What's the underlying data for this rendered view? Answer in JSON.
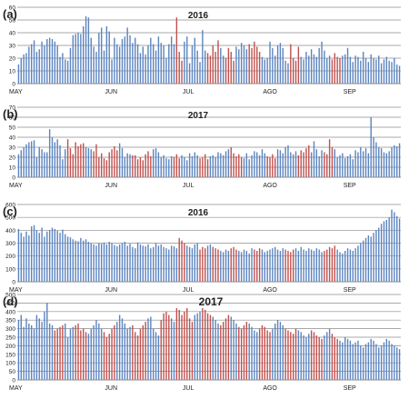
{
  "colors": {
    "blue_bar": "#5B84C0",
    "red_bar": "#C0504D",
    "grid": "#8C8C8C",
    "text": "#222222"
  },
  "chart_data": [
    {
      "type": "bar",
      "panel_label": "(a)",
      "title": "2016",
      "ylim": [
        0,
        60
      ],
      "yticks": [
        0,
        10,
        20,
        30,
        40,
        50,
        60
      ],
      "month_labels": [
        "MAY",
        "JUN",
        "JUL",
        "AGO",
        "SEP"
      ],
      "month_start_index": [
        0,
        31,
        61,
        92,
        123
      ],
      "grid": true,
      "values": [
        15,
        20,
        23,
        24,
        29,
        31,
        34,
        25,
        27,
        33,
        30,
        35,
        36,
        35,
        33,
        30,
        21,
        24,
        19,
        18,
        28,
        38,
        39,
        40,
        39,
        45,
        53,
        52,
        36,
        29,
        25,
        40,
        44,
        26,
        45,
        41,
        19,
        36,
        31,
        29,
        35,
        37,
        44,
        38,
        32,
        36,
        31,
        24,
        29,
        23,
        30,
        36,
        31,
        26,
        37,
        32,
        30,
        20,
        31,
        37,
        31,
        52,
        25,
        18,
        33,
        37,
        16,
        30,
        36,
        26,
        17,
        42,
        26,
        24,
        22,
        30,
        25,
        34,
        28,
        22,
        20,
        28,
        25,
        18,
        29,
        27,
        32,
        30,
        27,
        31,
        28,
        33,
        29,
        25,
        21,
        19,
        20,
        33,
        28,
        22,
        30,
        32,
        28,
        18,
        16,
        31,
        20,
        18,
        29,
        21,
        19,
        25,
        22,
        27,
        23,
        21,
        28,
        33,
        26,
        20,
        22,
        19,
        24,
        21,
        20,
        22,
        23,
        28,
        21,
        17,
        22,
        21,
        18,
        25,
        20,
        17,
        23,
        20,
        19,
        22,
        16,
        19,
        21,
        18,
        17,
        20,
        15,
        14
      ],
      "red_indices": [
        61,
        62,
        63,
        73,
        74,
        75,
        76,
        77,
        80,
        81,
        82,
        83,
        89,
        90,
        91,
        92,
        93,
        105,
        106,
        107,
        108,
        121,
        122,
        123,
        124
      ]
    },
    {
      "type": "bar",
      "panel_label": "(b)",
      "title": "2017",
      "ylim": [
        0,
        70
      ],
      "yticks": [
        0,
        10,
        20,
        30,
        40,
        50,
        60,
        70
      ],
      "month_labels": [
        "MAY",
        "JUN",
        "JUL",
        "AGO",
        "SEP"
      ],
      "month_start_index": [
        0,
        31,
        61,
        92,
        123
      ],
      "grid": true,
      "values": [
        23,
        27,
        30,
        33,
        35,
        36,
        37,
        20,
        30,
        28,
        25,
        25,
        48,
        40,
        35,
        38,
        32,
        18,
        28,
        38,
        29,
        23,
        35,
        31,
        33,
        34,
        30,
        29,
        28,
        26,
        33,
        20,
        24,
        19,
        17,
        25,
        28,
        31,
        27,
        34,
        29,
        20,
        24,
        23,
        22,
        22,
        18,
        20,
        17,
        23,
        26,
        21,
        28,
        29,
        25,
        20,
        22,
        19,
        18,
        21,
        20,
        23,
        19,
        22,
        20,
        17,
        24,
        21,
        25,
        22,
        19,
        20,
        23,
        18,
        21,
        22,
        20,
        25,
        24,
        22,
        26,
        28,
        30,
        24,
        21,
        23,
        20,
        19,
        24,
        18,
        22,
        26,
        25,
        22,
        28,
        24,
        21,
        20,
        23,
        19,
        28,
        27,
        24,
        30,
        32,
        25,
        23,
        26,
        22,
        27,
        25,
        29,
        32,
        25,
        36,
        28,
        21,
        27,
        25,
        23,
        38,
        30,
        28,
        20,
        22,
        24,
        19,
        21,
        23,
        18,
        27,
        25,
        30,
        26,
        29,
        24,
        60,
        40,
        35,
        30,
        29,
        25,
        24,
        26,
        30,
        32,
        31,
        34
      ],
      "red_indices": [
        19,
        20,
        21,
        22,
        23,
        24,
        25,
        29,
        30,
        31,
        32,
        33,
        34,
        35,
        36,
        37,
        38,
        44,
        45,
        46,
        47,
        48,
        49,
        50,
        51,
        60,
        61,
        62,
        70,
        71,
        72,
        73,
        82,
        83,
        84,
        85,
        86,
        96,
        97,
        98,
        99,
        108,
        109,
        110,
        111,
        112,
        118,
        119,
        120,
        121
      ]
    },
    {
      "type": "bar",
      "panel_label": "(c)",
      "title": "2016",
      "ylim": [
        0,
        600
      ],
      "yticks": [
        0,
        100,
        200,
        300,
        400,
        500,
        600
      ],
      "month_labels": [
        "MAY",
        "JUN",
        "JUL",
        "AGO",
        "SEP"
      ],
      "month_start_index": [
        0,
        31,
        61,
        92,
        123
      ],
      "grid": true,
      "values": [
        410,
        380,
        350,
        390,
        360,
        430,
        440,
        400,
        380,
        420,
        350,
        390,
        400,
        420,
        410,
        395,
        380,
        405,
        370,
        350,
        345,
        330,
        320,
        315,
        340,
        320,
        330,
        310,
        300,
        290,
        280,
        300,
        295,
        305,
        290,
        310,
        300,
        285,
        275,
        290,
        300,
        310,
        280,
        295,
        270,
        260,
        305,
        290,
        280,
        275,
        290,
        260,
        270,
        300,
        280,
        290,
        270,
        260,
        250,
        280,
        275,
        260,
        340,
        320,
        300,
        280,
        270,
        260,
        290,
        300,
        250,
        270,
        260,
        280,
        290,
        270,
        260,
        250,
        240,
        230,
        250,
        240,
        260,
        270,
        250,
        240,
        230,
        250,
        240,
        220,
        260,
        250,
        240,
        260,
        250,
        230,
        240,
        250,
        260,
        270,
        250,
        240,
        260,
        250,
        240,
        230,
        250,
        260,
        240,
        270,
        250,
        240,
        260,
        250,
        240,
        260,
        250,
        230,
        240,
        250,
        270,
        260,
        280,
        250,
        230,
        220,
        240,
        260,
        250,
        240,
        260,
        280,
        300,
        320,
        340,
        360,
        350,
        380,
        400,
        420,
        450,
        470,
        480,
        500,
        560,
        540,
        510,
        490
      ],
      "red_indices": [
        62,
        63,
        64,
        70,
        71,
        72,
        75,
        76,
        77,
        82,
        83,
        84,
        91,
        92,
        93,
        103,
        104,
        105,
        106,
        118,
        119,
        120,
        121,
        122
      ]
    },
    {
      "type": "bar",
      "panel_label": "(d)",
      "title": "2017",
      "ylim": [
        0,
        500
      ],
      "yticks": [
        0,
        50,
        100,
        150,
        200,
        250,
        300,
        350,
        400,
        450,
        500
      ],
      "month_labels": [
        "MAY",
        "JUN",
        "JUL",
        "AGO",
        "SEP"
      ],
      "month_start_index": [
        0,
        31,
        61,
        92,
        123
      ],
      "grid": true,
      "values": [
        350,
        380,
        310,
        360,
        330,
        320,
        300,
        380,
        360,
        340,
        400,
        450,
        330,
        320,
        290,
        300,
        310,
        320,
        330,
        250,
        300,
        310,
        320,
        330,
        290,
        300,
        280,
        270,
        300,
        320,
        350,
        330,
        300,
        280,
        250,
        270,
        300,
        320,
        340,
        380,
        360,
        330,
        300,
        310,
        320,
        280,
        260,
        300,
        320,
        340,
        360,
        370,
        300,
        280,
        260,
        350,
        390,
        400,
        380,
        360,
        340,
        420,
        410,
        380,
        400,
        420,
        360,
        340,
        380,
        390,
        400,
        420,
        410,
        390,
        380,
        370,
        350,
        330,
        320,
        340,
        360,
        380,
        370,
        350,
        330,
        310,
        300,
        320,
        340,
        330,
        310,
        290,
        280,
        300,
        320,
        310,
        290,
        280,
        300,
        330,
        350,
        340,
        320,
        300,
        290,
        280,
        270,
        300,
        290,
        280,
        260,
        250,
        270,
        290,
        280,
        260,
        250,
        240,
        260,
        280,
        300,
        270,
        250,
        240,
        230,
        220,
        250,
        240,
        230,
        210,
        220,
        230,
        200,
        190,
        210,
        220,
        240,
        230,
        210,
        190,
        200,
        220,
        240,
        230,
        210,
        200,
        190,
        180
      ],
      "red_indices": [
        14,
        15,
        16,
        17,
        22,
        23,
        24,
        25,
        26,
        33,
        34,
        35,
        36,
        37,
        44,
        45,
        46,
        47,
        48,
        49,
        55,
        56,
        57,
        58,
        61,
        62,
        63,
        64,
        65,
        66,
        67,
        71,
        72,
        73,
        74,
        78,
        79,
        80,
        81,
        85,
        86,
        87,
        88,
        93,
        94,
        95,
        96,
        97,
        103,
        104,
        105,
        106,
        107,
        113,
        114,
        115,
        116,
        117,
        121,
        122,
        123
      ]
    }
  ]
}
